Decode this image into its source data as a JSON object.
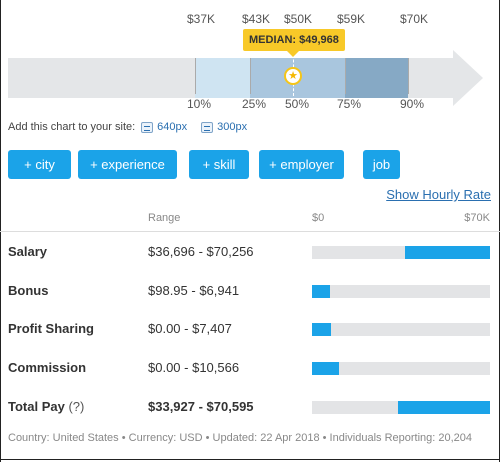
{
  "percentile_chart": {
    "value_labels": [
      "$37K",
      "$43K",
      "$50K",
      "$59K",
      "$70K"
    ],
    "percentile_labels": [
      "10%",
      "25%",
      "50%",
      "75%",
      "90%"
    ],
    "median_label": "MEDIAN: $49,968",
    "median_icon": "star-icon",
    "colors": {
      "light": "#cfe4f2",
      "mid": "#a9c6de",
      "dark": "#86a9c5",
      "track": "#e4e6e8",
      "median": "#f8c928"
    }
  },
  "embed": {
    "text": "Add this chart to your site:",
    "links": [
      "640px",
      "300px"
    ]
  },
  "filters": [
    "+ city",
    "+ experience",
    "+ skill",
    "+ employer",
    "job"
  ],
  "hourly_link": "Show Hourly Rate",
  "table": {
    "headers": {
      "range": "Range",
      "min": "$0",
      "max": "$70K"
    },
    "rows": [
      {
        "name": "Salary",
        "range": "$36,696 - $70,256",
        "bar_start": 0.52,
        "bar_end": 1.0
      },
      {
        "name": "Bonus",
        "range": "$98.95 - $6,941",
        "bar_start": 0.0,
        "bar_end": 0.099
      },
      {
        "name": "Profit Sharing",
        "range": "$0.00 - $7,407",
        "bar_start": 0.0,
        "bar_end": 0.106
      },
      {
        "name": "Commission",
        "range": "$0.00 - $10,566",
        "bar_start": 0.0,
        "bar_end": 0.151
      }
    ],
    "total": {
      "name": "Total Pay",
      "help": "(?)",
      "range": "$33,927 - $70,595",
      "bar_start": 0.485,
      "bar_end": 1.0
    }
  },
  "footer": "Country: United States • Currency: USD • Updated: 22 Apr 2018 • Individuals Reporting: 20,204",
  "accent_color": "#1ba3e8"
}
